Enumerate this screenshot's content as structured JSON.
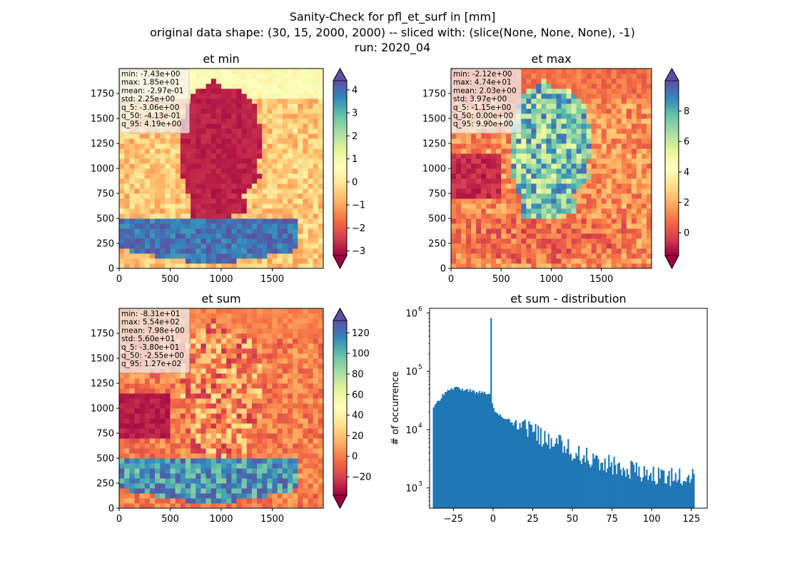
{
  "figure": {
    "title_lines": [
      "Sanity-Check for pfl_et_surf in [mm]",
      "original data shape: (30, 15, 2000, 2000) -- sliced with: (slice(None, None, None), -1)",
      "run: 2020_04"
    ]
  },
  "chart_data": [
    {
      "type": "heatmap",
      "title": "et min",
      "colormap": "Spectral",
      "xlim": [
        0,
        2000
      ],
      "ylim": [
        0,
        2000
      ],
      "xticks": [
        0,
        500,
        1000,
        1500
      ],
      "yticks": [
        0,
        250,
        500,
        750,
        1000,
        1250,
        1500,
        1750
      ],
      "colorbar": {
        "range": [
          -3.2,
          4.4
        ],
        "ticks": [
          -3,
          -2,
          -1,
          0,
          1,
          2,
          3,
          4
        ],
        "extend": "both"
      },
      "stats": [
        "min: -7.43e+00",
        "max: 1.85e+01",
        "mean: -2.97e-01",
        "std: 2.25e+00",
        "q_5: -3.06e+00",
        "q_50: -4.13e-01",
        "q_95: 4.19e+00"
      ]
    },
    {
      "type": "heatmap",
      "title": "et max",
      "colormap": "Spectral",
      "xlim": [
        0,
        2000
      ],
      "ylim": [
        0,
        2000
      ],
      "xticks": [
        0,
        500,
        1000,
        1500
      ],
      "yticks": [
        0,
        250,
        500,
        750,
        1000,
        1250,
        1500,
        1750
      ],
      "colorbar": {
        "range": [
          -1.5,
          10
        ],
        "ticks": [
          0,
          2,
          4,
          6,
          8
        ],
        "extend": "both"
      },
      "stats": [
        "min: -2.12e+00",
        "max: 4.74e+01",
        "mean: 2.03e+00",
        "std: 3.97e+00",
        "q_5: -1.15e+00",
        "q_50: 0.00e+00",
        "q_95: 9.90e+00"
      ]
    },
    {
      "type": "heatmap",
      "title": "et sum",
      "colormap": "Spectral",
      "xlim": [
        0,
        2000
      ],
      "ylim": [
        0,
        2000
      ],
      "xticks": [
        0,
        500,
        1000,
        1500
      ],
      "yticks": [
        0,
        250,
        500,
        750,
        1000,
        1250,
        1500,
        1750
      ],
      "colorbar": {
        "range": [
          -38,
          132
        ],
        "ticks": [
          -20,
          0,
          20,
          40,
          60,
          80,
          100,
          120
        ],
        "extend": "both"
      },
      "stats": [
        "min: -8.31e+01",
        "max: 5.54e+02",
        "mean: 7.98e+00",
        "std: 5.60e+01",
        "q_5: -3.80e+01",
        "q_50: -2.55e+00",
        "q_95: 1.27e+02"
      ]
    },
    {
      "type": "bar",
      "title": "et sum - distribution",
      "ylabel": "# of occurrence",
      "xlabel": "",
      "yscale": "log",
      "xlim": [
        -40,
        135
      ],
      "ylim": [
        450,
        1200000
      ],
      "xticks": [
        -25,
        0,
        25,
        50,
        75,
        100,
        125
      ],
      "yticks": [
        1000,
        10000,
        100000,
        1000000
      ],
      "ytick_labels": [
        {
          "base": "10",
          "exp": "3"
        },
        {
          "base": "10",
          "exp": "4"
        },
        {
          "base": "10",
          "exp": "5"
        },
        {
          "base": "10",
          "exp": "6"
        }
      ],
      "bar_color": "#1f77b4",
      "bin_range": [
        -38,
        127
      ],
      "bins": 200,
      "counts_anchors": [
        [
          -38,
          24000
        ],
        [
          -36,
          27000
        ],
        [
          -34,
          32000
        ],
        [
          -32,
          38000
        ],
        [
          -30,
          44000
        ],
        [
          -27,
          48000
        ],
        [
          -24,
          52000
        ],
        [
          -20,
          50000
        ],
        [
          -16,
          48000
        ],
        [
          -12,
          45000
        ],
        [
          -8,
          43000
        ],
        [
          -4,
          42000
        ],
        [
          -2,
          40000
        ],
        [
          -1,
          33000
        ],
        [
          0,
          26000
        ],
        [
          2,
          19000
        ],
        [
          6,
          16500
        ],
        [
          10,
          14500
        ],
        [
          15,
          13000
        ],
        [
          20,
          11500
        ],
        [
          25,
          9500
        ],
        [
          30,
          8000
        ],
        [
          35,
          7000
        ],
        [
          40,
          6000
        ],
        [
          45,
          5200
        ],
        [
          50,
          4500
        ],
        [
          55,
          3900
        ],
        [
          60,
          3400
        ],
        [
          65,
          3000
        ],
        [
          70,
          2700
        ],
        [
          75,
          2500
        ],
        [
          80,
          2300
        ],
        [
          85,
          2100
        ],
        [
          90,
          2000
        ],
        [
          95,
          1900
        ],
        [
          100,
          1800
        ],
        [
          105,
          1750
        ],
        [
          110,
          1700
        ],
        [
          115,
          1650
        ],
        [
          120,
          1600
        ],
        [
          125,
          1550
        ],
        [
          127,
          1550
        ]
      ],
      "peak": {
        "x": -1.5,
        "count": 820000
      }
    }
  ]
}
